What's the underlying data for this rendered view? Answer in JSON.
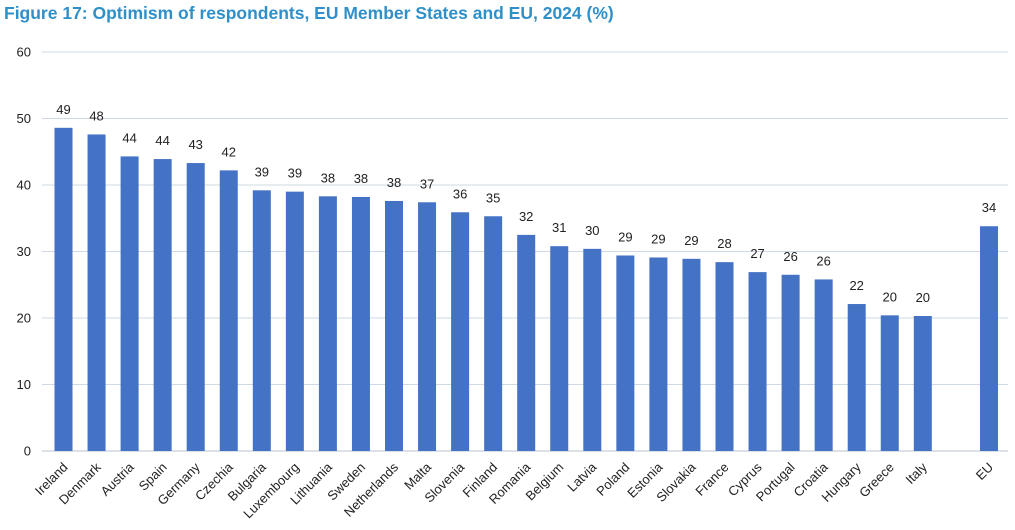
{
  "chart_data": {
    "type": "bar",
    "title": "Figure 17: Optimism of respondents, EU Member States and EU, 2024 (%)",
    "xlabel": "",
    "ylabel": "",
    "ylim": [
      0,
      60
    ],
    "yticks": [
      0,
      10,
      20,
      30,
      40,
      50,
      60
    ],
    "grid": true,
    "legend": "none",
    "bar_color": "#4472c4",
    "grid_color": "#cfd8e3",
    "title_color": "#2f8fc9",
    "categories": [
      "Ireland",
      "Denmark",
      "Austria",
      "Spain",
      "Germany",
      "Czechia",
      "Bulgaria",
      "Luxembourg",
      "Lithuania",
      "Sweden",
      "Netherlands",
      "Malta",
      "Slovenia",
      "Finland",
      "Romania",
      "Belgium",
      "Latvia",
      "Poland",
      "Estonia",
      "Slovakia",
      "France",
      "Cyprus",
      "Portugal",
      "Croatia",
      "Hungary",
      "Greece",
      "Italy",
      "EU"
    ],
    "values": [
      48.6,
      47.6,
      44.3,
      43.9,
      43.3,
      42.2,
      39.2,
      39.0,
      38.3,
      38.2,
      37.6,
      37.4,
      35.9,
      35.3,
      32.5,
      30.8,
      30.4,
      29.4,
      29.1,
      28.9,
      28.4,
      26.9,
      26.5,
      25.8,
      22.1,
      20.4,
      20.3,
      33.8
    ],
    "data_labels": [
      "49",
      "48",
      "44",
      "44",
      "43",
      "42",
      "39",
      "39",
      "38",
      "38",
      "38",
      "37",
      "36",
      "35",
      "32",
      "31",
      "30",
      "29",
      "29",
      "29",
      "28",
      "27",
      "26",
      "26",
      "22",
      "20",
      "20",
      "34"
    ]
  }
}
